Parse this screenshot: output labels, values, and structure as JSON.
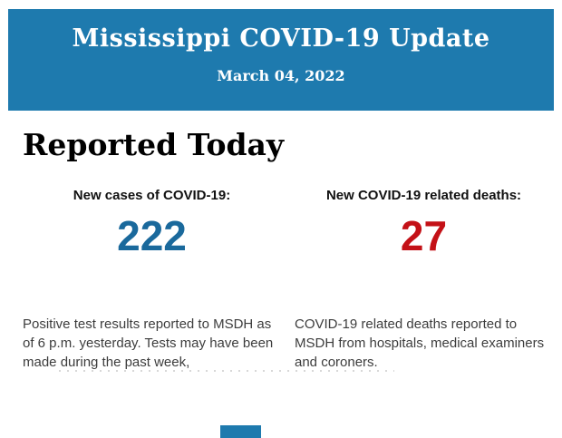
{
  "header": {
    "title": "Mississippi COVID-19 Update",
    "date": "March 04, 2022",
    "background_color": "#1e7aae",
    "text_color": "#ffffff"
  },
  "section": {
    "heading": "Reported Today"
  },
  "stats": [
    {
      "label": "New cases of COVID-19:",
      "value": "222",
      "value_color": "#1a699c",
      "description": "Positive test results reported to MSDH as of 6 p.m. yesterday. Tests may have been made during the past week,"
    },
    {
      "label": "New COVID-19 related deaths:",
      "value": "27",
      "value_color": "#c41117",
      "description": "COVID-19 related deaths reported to MSDH from hospitals, medical examiners and coroners."
    }
  ]
}
